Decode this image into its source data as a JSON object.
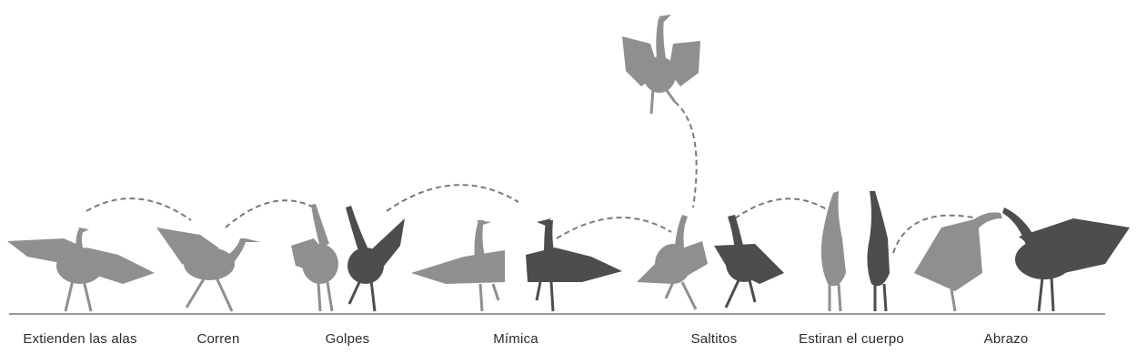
{
  "stages": [
    {
      "id": "extend-wings",
      "label": "Extienden las alas"
    },
    {
      "id": "run",
      "label": "Corren"
    },
    {
      "id": "strikes",
      "label": "Golpes"
    },
    {
      "id": "mimicry",
      "label": "Mímica"
    },
    {
      "id": "hops",
      "label": "Saltitos"
    },
    {
      "id": "stretch",
      "label": "Estiran el cuerpo"
    },
    {
      "id": "embrace",
      "label": "Abrazo"
    }
  ],
  "colors": {
    "light_bird": "#8f8f8f",
    "dark_bird": "#4d4d4d",
    "trajectory": "#7a7a7a",
    "ground": "#9a9a9a"
  }
}
